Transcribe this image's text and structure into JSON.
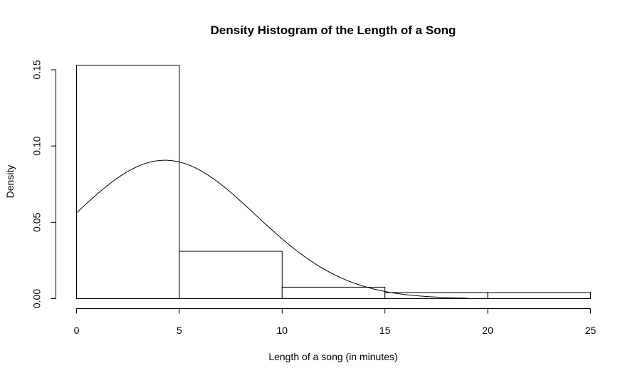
{
  "chart_data": {
    "type": "bar",
    "title": "Density Histogram of the Length of a Song",
    "xlabel": "Length of a song (in minutes)",
    "ylabel": "Density",
    "bins": [
      {
        "start": 0,
        "end": 5,
        "density": 0.153
      },
      {
        "start": 5,
        "end": 10,
        "density": 0.031
      },
      {
        "start": 10,
        "end": 15,
        "density": 0.0075
      },
      {
        "start": 15,
        "end": 20,
        "density": 0.004
      },
      {
        "start": 20,
        "end": 25,
        "density": 0.004
      }
    ],
    "x_ticks": [
      0,
      5,
      10,
      15,
      20,
      25
    ],
    "x_tick_labels": [
      "0",
      "5",
      "10",
      "15",
      "20",
      "25"
    ],
    "y_ticks": [
      0,
      0.05,
      0.1,
      0.15
    ],
    "y_tick_labels": [
      "0.00",
      "0.05",
      "0.10",
      "0.15"
    ],
    "xlim": [
      0,
      25
    ],
    "ylim": [
      0,
      0.153
    ],
    "grid": false,
    "overlay_curve": {
      "type": "normal",
      "mean": 4.3,
      "sd": 4.4,
      "x_range": [
        0,
        19
      ]
    }
  }
}
